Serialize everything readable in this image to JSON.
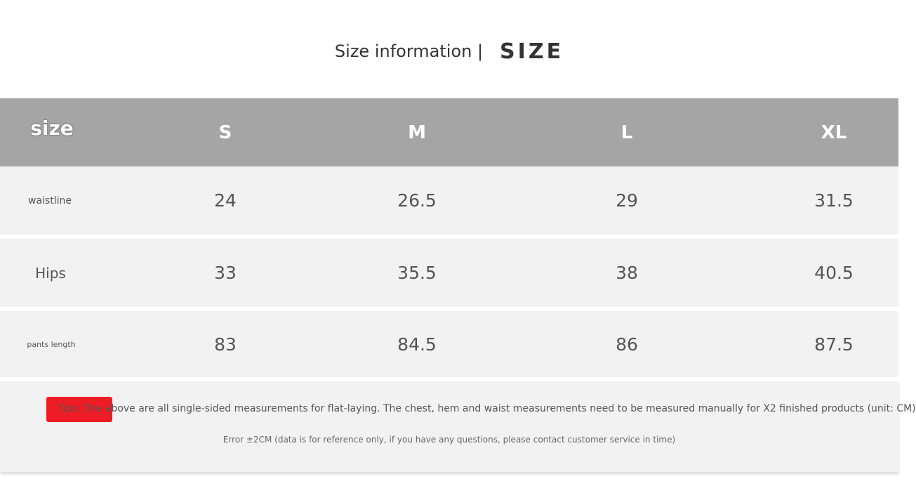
{
  "title": {
    "text": "Size information |",
    "big": "SIZE"
  },
  "header": {
    "label": "size",
    "sizes": [
      "S",
      "M",
      "L",
      "XL"
    ]
  },
  "rows": [
    {
      "label": "waistline",
      "values": [
        "24",
        "26.5",
        "29",
        "31.5"
      ]
    },
    {
      "label": "Hips",
      "values": [
        "33",
        "35.5",
        "38",
        "40.5"
      ]
    },
    {
      "label": "pants length",
      "values": [
        "83",
        "84.5",
        "86",
        "87.5"
      ]
    }
  ],
  "footer": {
    "tip": "Tips: The above are all single-sided measurements for flat-laying. The chest, hem and waist measurements need to be measured manually for X2 finished products (unit: CM)",
    "error": "Error ±2CM (data is for reference only, if you have any questions, please contact customer service in time)"
  },
  "colors": {
    "header_bg": "#a5a5a5",
    "row_bg": "#f2f2f2",
    "tip_highlight": "#ee1c24"
  }
}
